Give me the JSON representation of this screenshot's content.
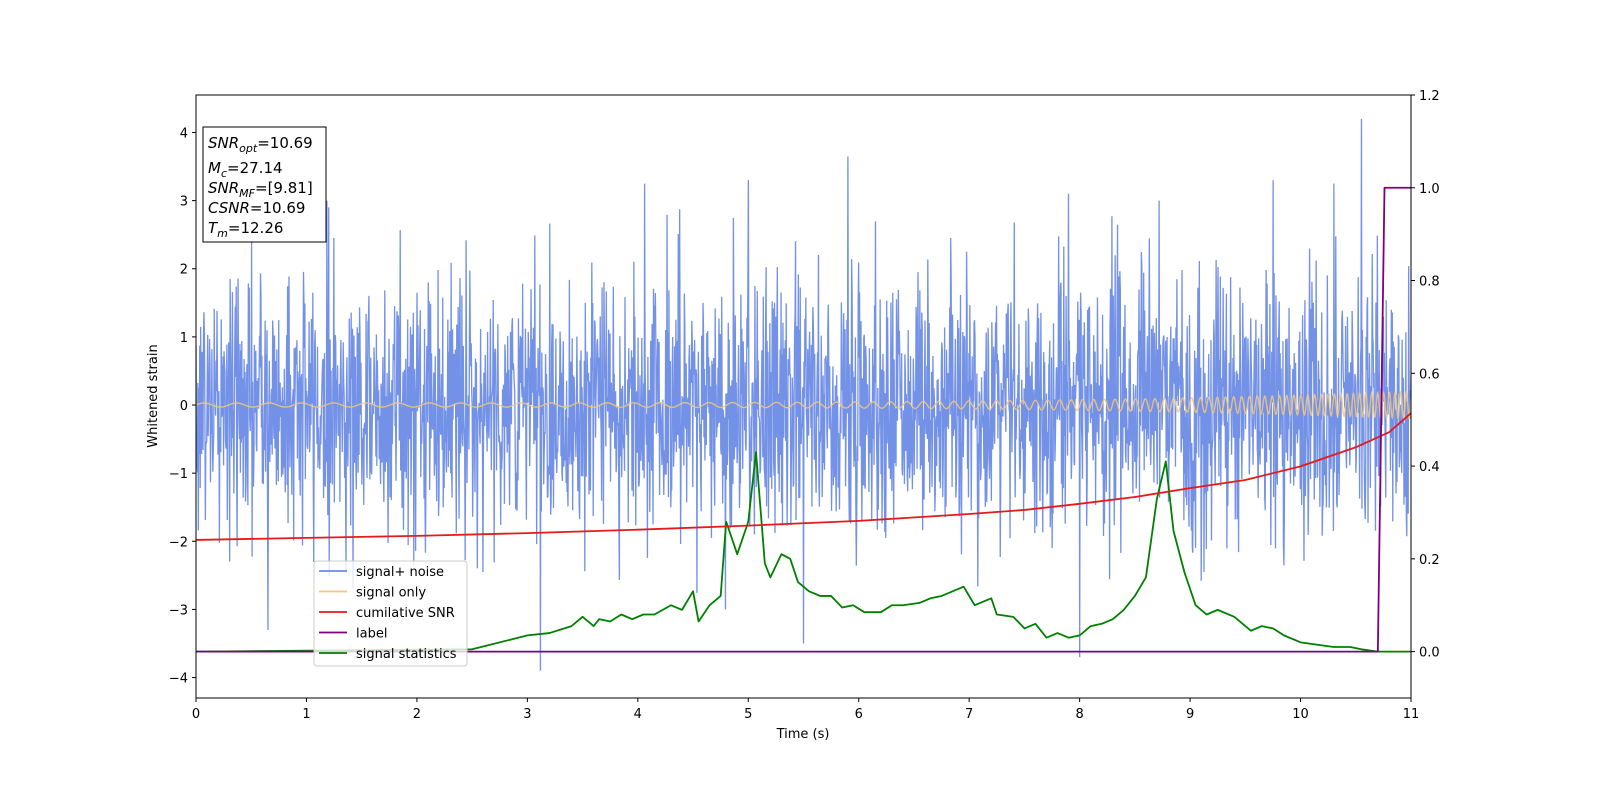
{
  "chart_data": {
    "type": "line",
    "xlabel": "Time (s)",
    "ylabel": "Whitened strain",
    "xlim": [
      0,
      11
    ],
    "ylim_left": [
      -4.3,
      4.55
    ],
    "ylim_right": [
      -0.1,
      1.2
    ],
    "x_ticks": [
      "0",
      "1",
      "2",
      "3",
      "4",
      "5",
      "6",
      "7",
      "8",
      "9",
      "10",
      "11"
    ],
    "y_ticks_left": [
      "−4",
      "−3",
      "−2",
      "−1",
      "0",
      "1",
      "2",
      "3",
      "4"
    ],
    "y_ticks_right": [
      "0.0",
      "0.2",
      "0.4",
      "0.6",
      "0.8",
      "1.0",
      "1.2"
    ],
    "grid": false,
    "legend_position": "lower-left",
    "info_box": [
      {
        "base": "SNR",
        "sub": "opt",
        "rest": "=10.69"
      },
      {
        "base": "M",
        "sub": "c",
        "rest": "=27.14"
      },
      {
        "base": "SNR",
        "sub": "MF",
        "rest": "=[9.81]"
      },
      {
        "base": "CSNR",
        "sub": "",
        "rest": "=10.69"
      },
      {
        "base": "T",
        "sub": "m",
        "rest": "=12.26"
      }
    ],
    "series": [
      {
        "name": "signal+ noise",
        "color": "#6a8be6",
        "axis": "left",
        "kind": "noise",
        "x_range": [
          0,
          11
        ],
        "std": 1.0,
        "spikes": [
          [
            0.65,
            -3.3
          ],
          [
            1.2,
            2.9
          ],
          [
            3.12,
            -3.9
          ],
          [
            4.06,
            3.25
          ],
          [
            5.0,
            3.3
          ],
          [
            5.9,
            3.65
          ],
          [
            7.9,
            3.1
          ],
          [
            8.0,
            -3.7
          ],
          [
            8.72,
            3.0
          ],
          [
            9.75,
            3.3
          ],
          [
            10.3,
            3.25
          ],
          [
            10.55,
            4.2
          ],
          [
            5.5,
            -3.5
          ]
        ]
      },
      {
        "name": "signal only",
        "color": "#f5c77a",
        "axis": "left",
        "kind": "chirp",
        "x_range": [
          0,
          11
        ],
        "amplitude_start": 0.03,
        "amplitude_end": 0.2,
        "freq_start_hz": 3.4,
        "freq_end_hz": 20
      },
      {
        "name": "cumilative SNR",
        "color": "#e8191b",
        "axis": "left",
        "x": [
          0,
          1,
          2,
          3,
          4,
          5,
          6,
          7,
          7.5,
          8,
          8.5,
          9,
          9.5,
          10,
          10.5,
          10.8,
          11
        ],
        "y": [
          -1.98,
          -1.95,
          -1.92,
          -1.88,
          -1.83,
          -1.77,
          -1.7,
          -1.6,
          -1.54,
          -1.45,
          -1.35,
          -1.22,
          -1.1,
          -0.9,
          -0.62,
          -0.4,
          -0.12
        ]
      },
      {
        "name": "label",
        "color": "#7f007f",
        "axis": "right",
        "x": [
          0,
          10.7,
          10.76,
          11
        ],
        "y": [
          0.0,
          0.0,
          1.0,
          1.0
        ]
      },
      {
        "name": "signal statistics",
        "color": "#008000",
        "axis": "right",
        "x": [
          0,
          2.5,
          3.0,
          3.2,
          3.4,
          3.5,
          3.6,
          3.65,
          3.75,
          3.85,
          3.95,
          4.05,
          4.15,
          4.3,
          4.4,
          4.5,
          4.55,
          4.65,
          4.75,
          4.8,
          4.9,
          5.0,
          5.07,
          5.15,
          5.2,
          5.3,
          5.38,
          5.45,
          5.55,
          5.65,
          5.75,
          5.85,
          5.95,
          6.05,
          6.2,
          6.3,
          6.4,
          6.55,
          6.65,
          6.75,
          6.85,
          6.95,
          7.05,
          7.2,
          7.25,
          7.4,
          7.5,
          7.6,
          7.7,
          7.8,
          7.9,
          8.0,
          8.1,
          8.2,
          8.3,
          8.4,
          8.5,
          8.6,
          8.7,
          8.78,
          8.85,
          8.95,
          9.05,
          9.15,
          9.25,
          9.4,
          9.55,
          9.65,
          9.75,
          9.85,
          10.0,
          10.3,
          10.45,
          10.55,
          10.7,
          11
        ],
        "y": [
          0.0,
          0.005,
          0.035,
          0.04,
          0.055,
          0.075,
          0.055,
          0.07,
          0.065,
          0.08,
          0.07,
          0.08,
          0.08,
          0.1,
          0.09,
          0.13,
          0.065,
          0.1,
          0.12,
          0.28,
          0.21,
          0.28,
          0.43,
          0.19,
          0.16,
          0.21,
          0.2,
          0.15,
          0.13,
          0.12,
          0.12,
          0.095,
          0.1,
          0.085,
          0.085,
          0.1,
          0.1,
          0.105,
          0.115,
          0.12,
          0.13,
          0.14,
          0.1,
          0.115,
          0.08,
          0.075,
          0.05,
          0.06,
          0.03,
          0.04,
          0.03,
          0.035,
          0.055,
          0.06,
          0.07,
          0.09,
          0.12,
          0.16,
          0.33,
          0.41,
          0.26,
          0.17,
          0.1,
          0.08,
          0.09,
          0.075,
          0.045,
          0.055,
          0.05,
          0.035,
          0.02,
          0.01,
          0.01,
          0.005,
          0.0,
          0.0
        ]
      }
    ]
  }
}
